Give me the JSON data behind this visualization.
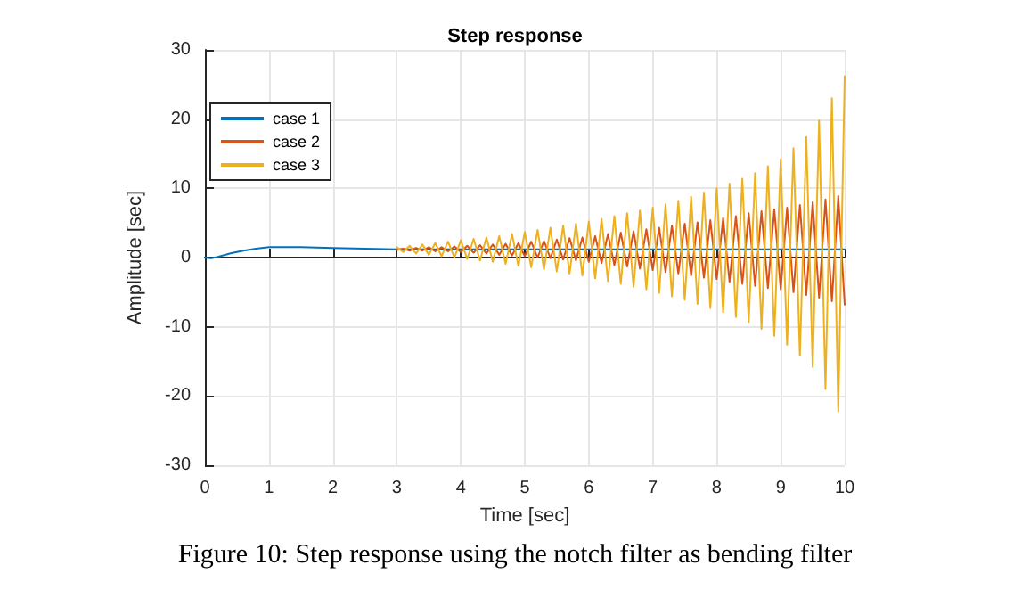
{
  "chart_data": {
    "type": "line",
    "title": "Step response",
    "xlabel": "Time [sec]",
    "ylabel": "Amplitude [sec]",
    "xlim": [
      0,
      10
    ],
    "xticks": [
      0,
      1,
      2,
      3,
      4,
      5,
      6,
      7,
      8,
      9,
      10
    ],
    "ylim": [
      -30,
      30
    ],
    "yticks": [
      -30,
      -20,
      -10,
      0,
      10,
      20,
      30
    ],
    "grid": true,
    "legend": "top left",
    "line_style": "solid",
    "marker": "none",
    "annotations": [
      "Figure 10: Step response using the notch filter as bending filter"
    ],
    "series": [
      {
        "name": "case 1",
        "color": "#0072bd",
        "x": [
          0,
          0.1,
          0.2,
          0.4,
          0.6,
          0.8,
          1,
          1.2,
          1.5,
          2,
          2.5,
          3,
          4,
          5,
          6,
          7,
          8,
          9,
          10
        ],
        "values": [
          0,
          -0.1,
          0.1,
          0.6,
          1.0,
          1.3,
          1.5,
          1.5,
          1.5,
          1.4,
          1.3,
          1.2,
          1.2,
          1.2,
          1.2,
          1.2,
          1.2,
          1.2,
          1.2
        ]
      },
      {
        "name": "case 2",
        "color": "#d95319",
        "x": [
          3.0,
          3.1,
          3.2,
          3.3,
          3.4,
          3.5,
          3.6,
          3.7,
          3.8,
          3.9,
          4.0,
          4.1,
          4.2,
          4.3,
          4.4,
          4.5,
          4.6,
          4.7,
          4.8,
          4.9,
          5.0,
          5.1,
          5.2,
          5.3,
          5.4,
          5.5,
          5.6,
          5.7,
          5.8,
          5.9,
          6.0,
          6.1,
          6.2,
          6.3,
          6.4,
          6.5,
          6.6,
          6.7,
          6.8,
          6.9,
          7.0,
          7.1,
          7.2,
          7.3,
          7.4,
          7.5,
          7.6,
          7.7,
          7.8,
          7.9,
          8.0,
          8.1,
          8.2,
          8.3,
          8.4,
          8.5,
          8.6,
          8.7,
          8.8,
          8.9,
          9.0,
          9.1,
          9.2,
          9.3,
          9.4,
          9.5,
          9.6,
          9.7,
          9.8,
          9.9,
          10.0
        ],
        "values": [
          1.1,
          1.3,
          1.0,
          1.4,
          1.0,
          1.5,
          0.9,
          1.5,
          0.9,
          1.6,
          0.8,
          1.7,
          0.7,
          1.8,
          0.6,
          1.9,
          0.4,
          2.0,
          0.3,
          2.1,
          0.2,
          2.3,
          0,
          2.4,
          -0.1,
          2.6,
          -0.3,
          2.8,
          -0.4,
          2.9,
          -0.6,
          3.1,
          -0.8,
          3.4,
          -1.1,
          3.6,
          -1.3,
          3.8,
          -1.6,
          4.1,
          -1.8,
          4.3,
          -2.1,
          4.6,
          -2.3,
          4.9,
          -2.6,
          5.1,
          -2.9,
          5.4,
          -3.1,
          5.7,
          -3.5,
          6.0,
          -3.8,
          6.4,
          -4.1,
          6.7,
          -4.4,
          7.0,
          -4.6,
          7.2,
          -5.0,
          7.6,
          -5.4,
          8.0,
          -5.8,
          8.4,
          -6.3,
          8.9,
          -6.8
        ]
      },
      {
        "name": "case 3",
        "color": "#edb120",
        "x": [
          3.0,
          3.1,
          3.2,
          3.3,
          3.4,
          3.5,
          3.6,
          3.7,
          3.8,
          3.9,
          4.0,
          4.1,
          4.2,
          4.3,
          4.4,
          4.5,
          4.6,
          4.7,
          4.8,
          4.9,
          5.0,
          5.1,
          5.2,
          5.3,
          5.4,
          5.5,
          5.6,
          5.7,
          5.8,
          5.9,
          6.0,
          6.1,
          6.2,
          6.3,
          6.4,
          6.5,
          6.6,
          6.7,
          6.8,
          6.9,
          7.0,
          7.1,
          7.2,
          7.3,
          7.4,
          7.5,
          7.6,
          7.7,
          7.8,
          7.9,
          8.0,
          8.1,
          8.2,
          8.3,
          8.4,
          8.5,
          8.6,
          8.7,
          8.8,
          8.9,
          9.0,
          9.1,
          9.2,
          9.3,
          9.4,
          9.5,
          9.6,
          9.7,
          9.8,
          9.9,
          10.0
        ],
        "values": [
          1.5,
          0.8,
          1.7,
          0.6,
          1.9,
          0.4,
          2.1,
          0.2,
          2.3,
          0,
          2.5,
          -0.2,
          2.7,
          -0.4,
          2.9,
          -0.6,
          3.1,
          -0.9,
          3.4,
          -1.2,
          3.7,
          -1.4,
          4.0,
          -1.7,
          4.3,
          -2.0,
          4.6,
          -2.3,
          4.9,
          -2.6,
          5.2,
          -3.0,
          5.6,
          -3.4,
          6.0,
          -3.8,
          6.4,
          -4.2,
          6.8,
          -4.6,
          7.2,
          -5.1,
          7.7,
          -5.6,
          8.2,
          -6.1,
          8.8,
          -6.7,
          9.4,
          -7.3,
          10,
          -7.9,
          10.7,
          -8.6,
          11.4,
          -9.3,
          12.2,
          -10.3,
          13.2,
          -11.3,
          14.2,
          -12.6,
          15.8,
          -14.2,
          17.4,
          -15.8,
          19.8,
          -19,
          23,
          -22.2,
          26.2
        ]
      }
    ]
  }
}
